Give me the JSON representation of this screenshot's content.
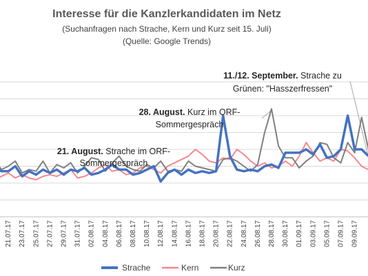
{
  "chart_data": {
    "type": "line",
    "title": "Interesse für die Kanzlerkandidaten im Netz",
    "subtitle": "(Suchanfragen nach Strache, Kern und Kurz seit 15. Juli)",
    "source": "(Quelle: Google Trends)",
    "x_tick_labels": [
      "21.07.17",
      "23.07.17",
      "25.07.17",
      "27.07.17",
      "29.07.17",
      "31.07.17",
      "02.08.17",
      "04.08.17",
      "06.08.17",
      "08.08.17",
      "10.08.17",
      "12.08.17",
      "14.08.17",
      "16.08.17",
      "18.08.17",
      "20.08.17",
      "22.08.17",
      "24.08.17",
      "26.08.17",
      "28.08.17",
      "30.08.17",
      "01.09.17",
      "03.09.17",
      "05.09.17",
      "07.09.17",
      "09.09.17"
    ],
    "x": [
      "19.07.17",
      "20.07.17",
      "21.07.17",
      "22.07.17",
      "23.07.17",
      "24.07.17",
      "25.07.17",
      "26.07.17",
      "27.07.17",
      "28.07.17",
      "29.07.17",
      "30.07.17",
      "31.07.17",
      "01.08.17",
      "02.08.17",
      "03.08.17",
      "04.08.17",
      "05.08.17",
      "06.08.17",
      "07.08.17",
      "08.08.17",
      "09.08.17",
      "10.08.17",
      "11.08.17",
      "12.08.17",
      "13.08.17",
      "14.08.17",
      "15.08.17",
      "16.08.17",
      "17.08.17",
      "18.08.17",
      "19.08.17",
      "20.08.17",
      "21.08.17",
      "22.08.17",
      "23.08.17",
      "24.08.17",
      "25.08.17",
      "26.08.17",
      "27.08.17",
      "28.08.17",
      "29.08.17",
      "30.08.17",
      "31.08.17",
      "01.09.17",
      "02.09.17",
      "03.09.17",
      "04.09.17",
      "05.09.17",
      "06.09.17",
      "07.09.17",
      "08.09.17",
      "09.09.17",
      "10.09.17",
      "11.09.17"
    ],
    "series": [
      {
        "name": "Strache",
        "color": "#4472c4",
        "values": [
          30,
          27,
          27,
          30,
          24,
          27,
          25,
          28,
          26,
          28,
          25,
          28,
          27,
          29,
          25,
          26,
          28,
          31,
          28,
          28,
          25,
          26,
          28,
          30,
          21,
          26,
          28,
          25,
          28,
          26,
          27,
          26,
          27,
          60,
          36,
          28,
          27,
          28,
          27,
          30,
          31,
          29,
          38,
          38,
          38,
          40,
          37,
          43,
          35,
          36,
          40,
          60,
          40,
          40,
          36
        ]
      },
      {
        "name": "Kern",
        "color": "#f4888d",
        "values": [
          22,
          24,
          26,
          23,
          25,
          23,
          22,
          24,
          25,
          24,
          26,
          28,
          23,
          24,
          26,
          29,
          31,
          27,
          28,
          25,
          26,
          29,
          30,
          28,
          26,
          30,
          32,
          34,
          36,
          40,
          37,
          33,
          32,
          35,
          34,
          40,
          37,
          33,
          30,
          32,
          29,
          30,
          33,
          30,
          36,
          44,
          38,
          33,
          35,
          33,
          40,
          39,
          35,
          30,
          28
        ]
      },
      {
        "name": "Kurz",
        "color": "#7f7f7f",
        "values": [
          34,
          28,
          30,
          33,
          26,
          28,
          27,
          33,
          26,
          31,
          29,
          32,
          26,
          30,
          35,
          34,
          27,
          32,
          36,
          30,
          28,
          27,
          31,
          29,
          33,
          27,
          28,
          27,
          33,
          30,
          29,
          28,
          27,
          34,
          35,
          33,
          30,
          27,
          31,
          50,
          64,
          42,
          35,
          35,
          29,
          33,
          36,
          44,
          43,
          35,
          32,
          44,
          38,
          59,
          40
        ]
      }
    ],
    "ylim": [
      0,
      100
    ],
    "grid": true,
    "legend_position": "bottom",
    "annotations": [
      {
        "bold": "21. August.",
        "text": " Strache im ORF-",
        "line2": "Sommergespräch"
      },
      {
        "bold": "28. August.",
        "text": " Kurz im ORF-",
        "line2": "Sommergespräch"
      },
      {
        "bold": "11./12. September.",
        "text": " Strache zu",
        "line2": "Grünen: \"Hasszerfressen\""
      }
    ]
  }
}
